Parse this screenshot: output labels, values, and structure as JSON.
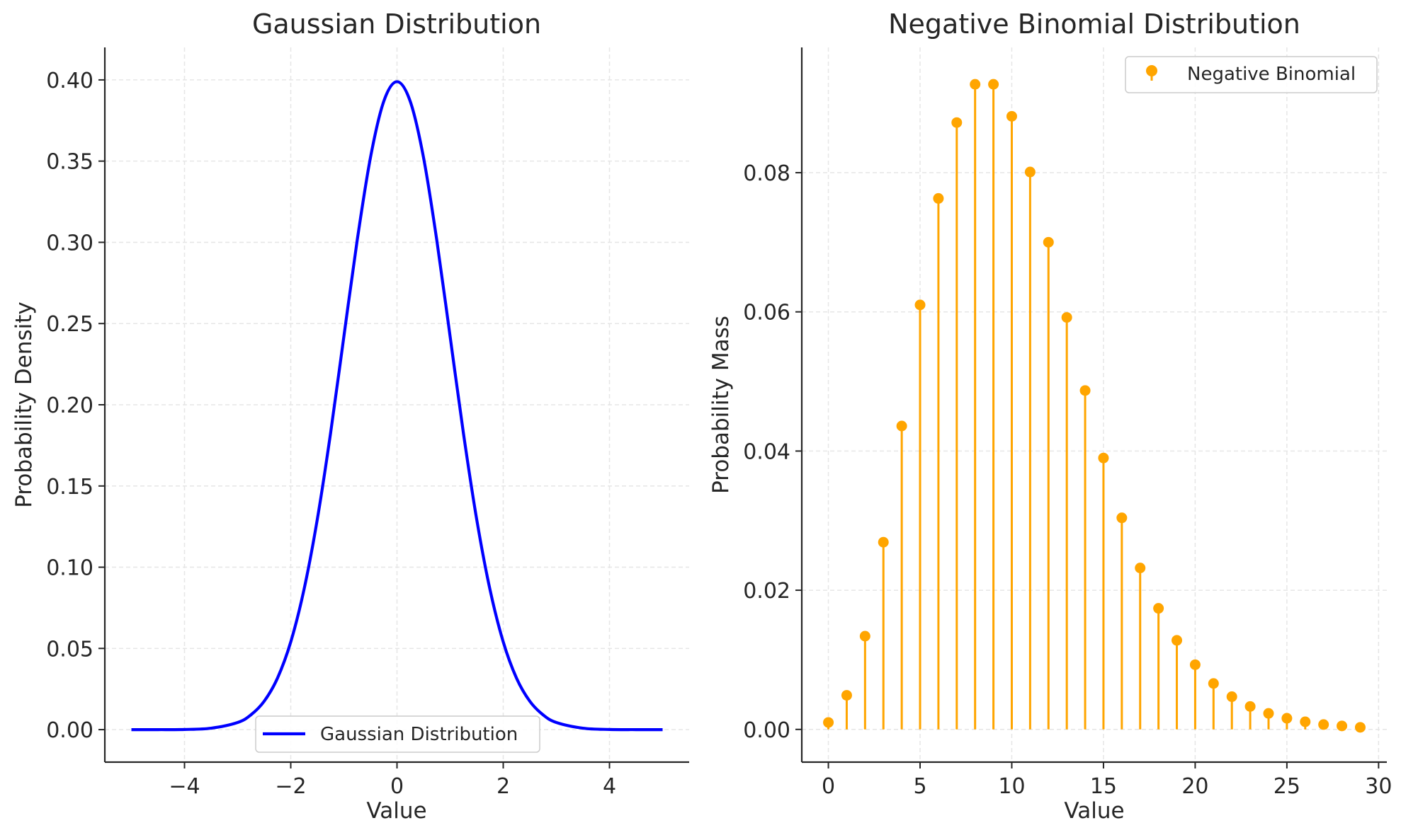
{
  "chart_data": [
    {
      "type": "line",
      "title": "Gaussian Distribution",
      "xlabel": "Value",
      "ylabel": "Probability Density",
      "xlim": [
        -5.5,
        5.5
      ],
      "ylim": [
        -0.02,
        0.42
      ],
      "xticks": [
        -4,
        -2,
        0,
        2,
        4
      ],
      "xtick_labels": [
        "−4",
        "−2",
        "0",
        "2",
        "4"
      ],
      "yticks": [
        0.0,
        0.05,
        0.1,
        0.15,
        0.2,
        0.25,
        0.3,
        0.35,
        0.4
      ],
      "ytick_labels": [
        "0.00",
        "0.05",
        "0.10",
        "0.15",
        "0.20",
        "0.25",
        "0.30",
        "0.35",
        "0.40"
      ],
      "grid": true,
      "legend_position": "lower center",
      "series": [
        {
          "name": "Gaussian Distribution",
          "color": "#0000ff",
          "x": [
            -5.0,
            -4.5,
            -4.0,
            -3.5,
            -3.0,
            -2.75,
            -2.5,
            -2.25,
            -2.0,
            -1.75,
            -1.5,
            -1.25,
            -1.0,
            -0.75,
            -0.5,
            -0.25,
            0.0,
            0.25,
            0.5,
            0.75,
            1.0,
            1.25,
            1.5,
            1.75,
            2.0,
            2.25,
            2.5,
            2.75,
            3.0,
            3.5,
            4.0,
            4.5,
            5.0
          ],
          "y": [
            0.0,
            0.0,
            0.0001,
            0.0009,
            0.0044,
            0.0091,
            0.0175,
            0.0317,
            0.054,
            0.0863,
            0.1295,
            0.1826,
            0.242,
            0.3011,
            0.3521,
            0.3867,
            0.3989,
            0.3867,
            0.3521,
            0.3011,
            0.242,
            0.1826,
            0.1295,
            0.0863,
            0.054,
            0.0317,
            0.0175,
            0.0091,
            0.0044,
            0.0009,
            0.0001,
            0.0,
            0.0
          ]
        }
      ]
    },
    {
      "type": "stem",
      "title": "Negative Binomial Distribution",
      "xlabel": "Value",
      "ylabel": "Probability Mass",
      "xlim": [
        -1.45,
        30.45
      ],
      "ylim": [
        -0.0047,
        0.098
      ],
      "xticks": [
        0,
        5,
        10,
        15,
        20,
        25,
        30
      ],
      "xtick_labels": [
        "0",
        "5",
        "10",
        "15",
        "20",
        "25",
        "30"
      ],
      "yticks": [
        0.0,
        0.02,
        0.04,
        0.06,
        0.08
      ],
      "ytick_labels": [
        "0.00",
        "0.02",
        "0.04",
        "0.06",
        "0.08"
      ],
      "grid": true,
      "legend_position": "upper right",
      "series": [
        {
          "name": "Negative Binomial",
          "color": "#ffa500",
          "x": [
            0,
            1,
            2,
            3,
            4,
            5,
            6,
            7,
            8,
            9,
            10,
            11,
            12,
            13,
            14,
            15,
            16,
            17,
            18,
            19,
            20,
            21,
            22,
            23,
            24,
            25,
            26,
            27,
            28,
            29
          ],
          "y": [
            0.001,
            0.0049,
            0.0134,
            0.0269,
            0.0436,
            0.061,
            0.0763,
            0.0872,
            0.0927,
            0.0927,
            0.0881,
            0.0801,
            0.07,
            0.0592,
            0.0487,
            0.039,
            0.0304,
            0.0232,
            0.0174,
            0.0128,
            0.0093,
            0.0066,
            0.0047,
            0.0033,
            0.0023,
            0.0016,
            0.0011,
            0.0007,
            0.0005,
            0.0003
          ]
        }
      ]
    }
  ]
}
